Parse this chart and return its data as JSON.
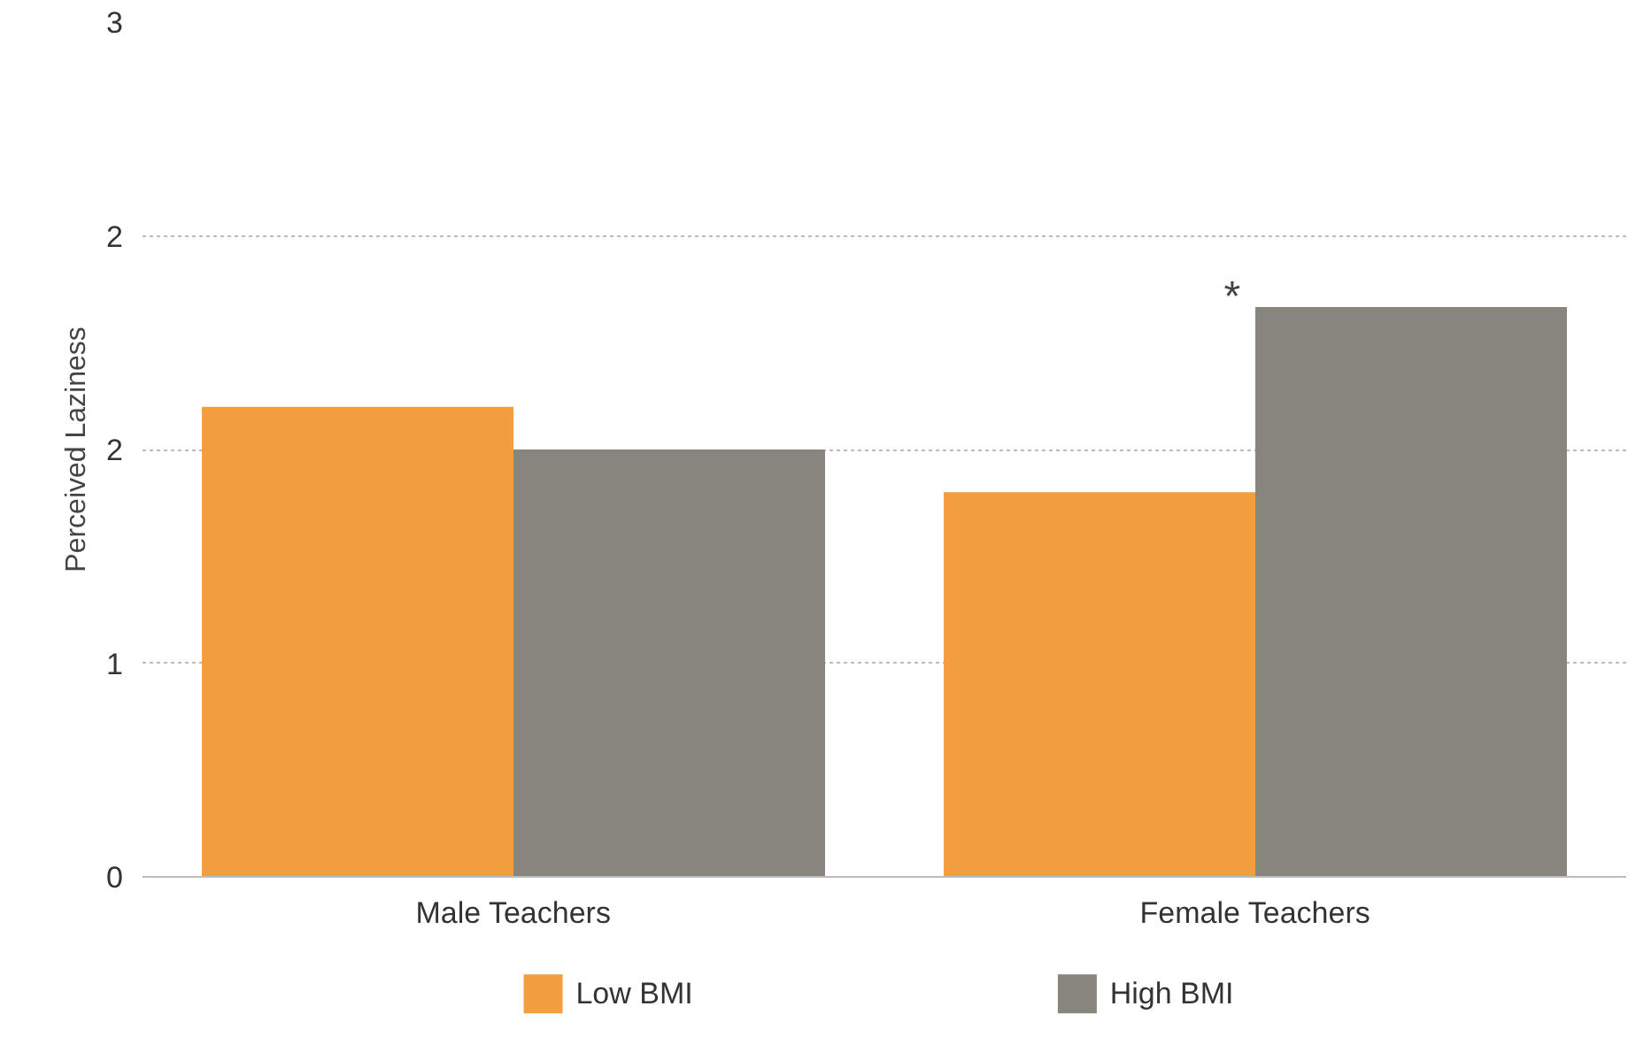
{
  "chart_data": {
    "type": "bar",
    "ylabel": "Perceived Laziness",
    "categories": [
      "Male Teachers",
      "Female Teachers"
    ],
    "series": [
      {
        "name": "Low BMI",
        "color": "#f29d3e",
        "values": [
          1.65,
          1.35
        ]
      },
      {
        "name": "High BMI",
        "color": "#88857d",
        "values": [
          1.5,
          2.0
        ]
      }
    ],
    "ylim": [
      0,
      3
    ],
    "yticks": [
      0,
      {
        "value": 0.75,
        "label": "1"
      },
      {
        "value": 1.5,
        "label": "2"
      },
      {
        "value": 2.25,
        "label": "2"
      },
      3
    ],
    "grid": "y",
    "legend": "bottom",
    "annotations": [
      {
        "text": "*",
        "x": "Female Teachers",
        "y": 1.95
      }
    ]
  }
}
